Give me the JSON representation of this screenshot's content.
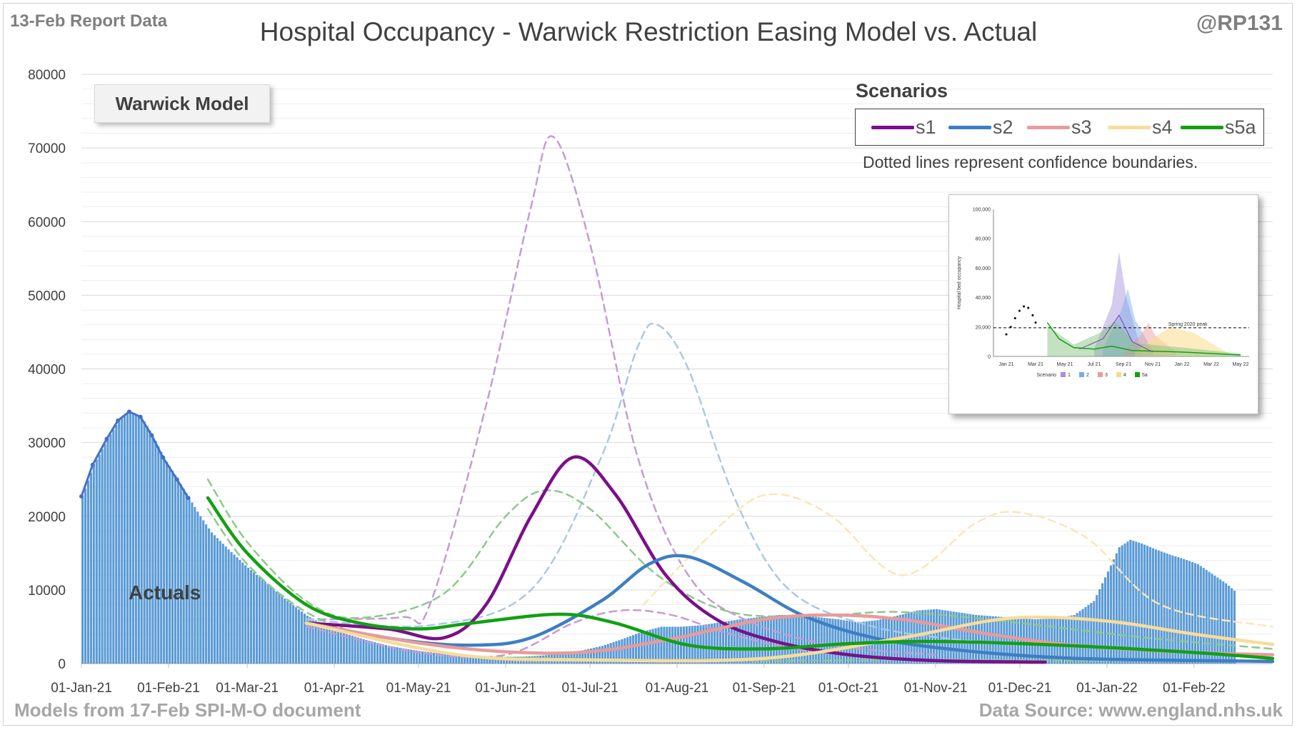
{
  "header": {
    "report_date": "13-Feb Report Data",
    "title": "Hospital Occupancy - Warwick Restriction Easing Model vs. Actual",
    "handle": "@RP131"
  },
  "footer": {
    "models_note": "Models from 17-Feb SPI-M-O document",
    "data_source": "Data Source: www.england.nhs.uk"
  },
  "model_badge": "Warwick Model",
  "actuals_label": "Actuals",
  "legend": {
    "title": "Scenarios",
    "items": [
      {
        "label": "s1",
        "color": "#7b0f8a"
      },
      {
        "label": "s2",
        "color": "#3d7ec4"
      },
      {
        "label": "s3",
        "color": "#e99a9a"
      },
      {
        "label": "s4",
        "color": "#f8dc9a"
      },
      {
        "label": "s5a",
        "color": "#12a012"
      }
    ],
    "note": "Dotted lines represent confidence boundaries."
  },
  "inset": {
    "ylabel": "Hospital bed occupancy",
    "yticks": [
      "0",
      "20,000",
      "40,000",
      "60,000",
      "80,000",
      "100,000"
    ],
    "xticks": [
      "Jan 21",
      "Mar 21",
      "May 21",
      "Jul 21",
      "Sep 21",
      "Nov 21",
      "Jan 22",
      "Mar 22",
      "May 22"
    ],
    "peak_label": "Spring 2020 peak",
    "legend_label": "Scenario",
    "legend_items": [
      "1",
      "2",
      "3",
      "4",
      "5a"
    ]
  },
  "chart_data": {
    "type": "bar+line",
    "title": "Hospital Occupancy - Warwick Restriction Easing Model vs. Actual",
    "ylim": [
      0,
      80000
    ],
    "yticks": [
      "0",
      "10000",
      "20000",
      "30000",
      "40000",
      "50000",
      "60000",
      "70000",
      "80000"
    ],
    "xlim": [
      "2021-01-01",
      "2022-03-01"
    ],
    "xticks": [
      "01-Jan-21",
      "01-Feb-21",
      "01-Mar-21",
      "01-Apr-21",
      "01-May-21",
      "01-Jun-21",
      "01-Jul-21",
      "01-Aug-21",
      "01-Sep-21",
      "01-Oct-21",
      "01-Nov-21",
      "01-Dec-21",
      "01-Jan-22",
      "01-Feb-22"
    ],
    "grid": true,
    "actuals": {
      "name": "Actuals",
      "color": "#5b9bd5",
      "points": [
        [
          "2021-01-01",
          22700
        ],
        [
          "2021-01-05",
          27000
        ],
        [
          "2021-01-10",
          30500
        ],
        [
          "2021-01-14",
          33000
        ],
        [
          "2021-01-18",
          34200
        ],
        [
          "2021-01-22",
          33500
        ],
        [
          "2021-01-26",
          31000
        ],
        [
          "2021-01-30",
          28000
        ],
        [
          "2021-02-04",
          25000
        ],
        [
          "2021-02-08",
          22500
        ],
        [
          "2021-02-12",
          20000
        ],
        [
          "2021-02-16",
          17800
        ],
        [
          "2021-02-22",
          15500
        ],
        [
          "2021-03-01",
          13000
        ],
        [
          "2021-03-08",
          10800
        ],
        [
          "2021-03-15",
          8500
        ],
        [
          "2021-03-22",
          6500
        ],
        [
          "2021-03-29",
          5000
        ],
        [
          "2021-04-05",
          4000
        ],
        [
          "2021-04-12",
          3200
        ],
        [
          "2021-04-19",
          2500
        ],
        [
          "2021-04-26",
          2000
        ],
        [
          "2021-05-03",
          1600
        ],
        [
          "2021-05-10",
          1300
        ],
        [
          "2021-05-17",
          1100
        ],
        [
          "2021-05-24",
          950
        ],
        [
          "2021-05-31",
          900
        ],
        [
          "2021-06-07",
          950
        ],
        [
          "2021-06-14",
          1100
        ],
        [
          "2021-06-21",
          1400
        ],
        [
          "2021-06-28",
          1800
        ],
        [
          "2021-07-05",
          2400
        ],
        [
          "2021-07-12",
          3300
        ],
        [
          "2021-07-19",
          4300
        ],
        [
          "2021-07-26",
          5000
        ],
        [
          "2021-08-02",
          5000
        ],
        [
          "2021-08-09",
          5200
        ],
        [
          "2021-08-16",
          5600
        ],
        [
          "2021-08-23",
          6000
        ],
        [
          "2021-08-30",
          6300
        ],
        [
          "2021-09-06",
          6600
        ],
        [
          "2021-09-13",
          6600
        ],
        [
          "2021-09-20",
          6300
        ],
        [
          "2021-09-27",
          6000
        ],
        [
          "2021-10-04",
          5600
        ],
        [
          "2021-10-11",
          5900
        ],
        [
          "2021-10-18",
          6500
        ],
        [
          "2021-10-25",
          7200
        ],
        [
          "2021-11-01",
          7400
        ],
        [
          "2021-11-08",
          7000
        ],
        [
          "2021-11-15",
          6600
        ],
        [
          "2021-11-22",
          6400
        ],
        [
          "2021-11-29",
          6200
        ],
        [
          "2021-12-06",
          6000
        ],
        [
          "2021-12-13",
          6100
        ],
        [
          "2021-12-20",
          6600
        ],
        [
          "2021-12-27",
          8500
        ],
        [
          "2022-01-01",
          12500
        ],
        [
          "2022-01-05",
          15800
        ],
        [
          "2022-01-09",
          16800
        ],
        [
          "2022-01-13",
          16300
        ],
        [
          "2022-01-18",
          15500
        ],
        [
          "2022-01-23",
          14800
        ],
        [
          "2022-01-28",
          14200
        ],
        [
          "2022-02-02",
          13500
        ],
        [
          "2022-02-07",
          12200
        ],
        [
          "2022-02-12",
          10900
        ],
        [
          "2022-02-15",
          9900
        ]
      ]
    },
    "series": [
      {
        "name": "s1",
        "color": "#7b0f8a",
        "style": "solid",
        "points": [
          [
            "2021-03-22",
            5500
          ],
          [
            "2021-04-20",
            4700
          ],
          [
            "2021-05-10",
            3500
          ],
          [
            "2021-05-25",
            8000
          ],
          [
            "2021-06-10",
            20000
          ],
          [
            "2021-06-25",
            28000
          ],
          [
            "2021-07-10",
            23000
          ],
          [
            "2021-07-28",
            12000
          ],
          [
            "2021-08-15",
            6000
          ],
          [
            "2021-09-05",
            3000
          ],
          [
            "2021-10-01",
            1200
          ],
          [
            "2021-11-01",
            400
          ],
          [
            "2021-12-10",
            200
          ]
        ]
      },
      {
        "name": "s1",
        "color": "#c79ad6",
        "style": "dashed",
        "points": [
          [
            "2021-03-22",
            6000
          ],
          [
            "2021-04-25",
            6300
          ],
          [
            "2021-05-05",
            8000
          ],
          [
            "2021-05-25",
            35000
          ],
          [
            "2021-06-10",
            62000
          ],
          [
            "2021-06-18",
            71500
          ],
          [
            "2021-07-01",
            57000
          ],
          [
            "2021-07-18",
            28000
          ],
          [
            "2021-08-05",
            12000
          ],
          [
            "2021-08-25",
            6000
          ],
          [
            "2021-09-25",
            2500
          ],
          [
            "2021-11-01",
            1200
          ]
        ]
      },
      {
        "name": "s1",
        "color": "#c79ad6",
        "style": "dashed",
        "points": [
          [
            "2021-03-22",
            5000
          ],
          [
            "2021-05-01",
            1500
          ],
          [
            "2021-06-01",
            1200
          ],
          [
            "2021-06-25",
            5500
          ],
          [
            "2021-07-12",
            7200
          ],
          [
            "2021-07-30",
            6600
          ],
          [
            "2021-08-20",
            4000
          ],
          [
            "2021-09-15",
            1800
          ],
          [
            "2021-10-20",
            700
          ]
        ]
      },
      {
        "name": "s2",
        "color": "#3d7ec4",
        "style": "solid",
        "points": [
          [
            "2021-03-22",
            5500
          ],
          [
            "2021-04-25",
            3200
          ],
          [
            "2021-05-20",
            2500
          ],
          [
            "2021-06-10",
            3500
          ],
          [
            "2021-07-05",
            8500
          ],
          [
            "2021-07-22",
            13500
          ],
          [
            "2021-08-05",
            14500
          ],
          [
            "2021-08-25",
            11000
          ],
          [
            "2021-09-15",
            6500
          ],
          [
            "2021-10-10",
            3500
          ],
          [
            "2021-11-10",
            1800
          ],
          [
            "2021-12-15",
            800
          ],
          [
            "2022-01-15",
            500
          ],
          [
            "2022-03-01",
            300
          ]
        ]
      },
      {
        "name": "s2",
        "color": "#a9c8e8",
        "style": "dashed",
        "points": [
          [
            "2021-03-22",
            6000
          ],
          [
            "2021-05-05",
            5200
          ],
          [
            "2021-06-10",
            10000
          ],
          [
            "2021-07-05",
            28000
          ],
          [
            "2021-07-18",
            43000
          ],
          [
            "2021-07-25",
            46000
          ],
          [
            "2021-08-05",
            40000
          ],
          [
            "2021-08-22",
            22000
          ],
          [
            "2021-09-10",
            10000
          ],
          [
            "2021-10-10",
            5000
          ],
          [
            "2021-11-15",
            3000
          ]
        ]
      },
      {
        "name": "s3",
        "color": "#e99a9a",
        "style": "solid",
        "points": [
          [
            "2021-03-22",
            5500
          ],
          [
            "2021-05-01",
            2800
          ],
          [
            "2021-06-01",
            1600
          ],
          [
            "2021-07-01",
            1600
          ],
          [
            "2021-08-01",
            3500
          ],
          [
            "2021-09-01",
            6000
          ],
          [
            "2021-09-25",
            6600
          ],
          [
            "2021-10-20",
            6000
          ],
          [
            "2021-11-20",
            4000
          ],
          [
            "2021-12-20",
            2500
          ],
          [
            "2022-02-01",
            1500
          ],
          [
            "2022-03-01",
            1200
          ]
        ]
      },
      {
        "name": "s4",
        "color": "#f8dc9a",
        "style": "solid",
        "points": [
          [
            "2021-03-22",
            5500
          ],
          [
            "2021-05-15",
            1200
          ],
          [
            "2021-07-01",
            500
          ],
          [
            "2021-09-01",
            700
          ],
          [
            "2021-10-20",
            3500
          ],
          [
            "2021-11-20",
            5800
          ],
          [
            "2021-12-10",
            6300
          ],
          [
            "2022-01-05",
            5600
          ],
          [
            "2022-02-01",
            4000
          ],
          [
            "2022-03-01",
            2600
          ]
        ]
      },
      {
        "name": "s4",
        "color": "#fae6b8",
        "style": "dashed",
        "points": [
          [
            "2021-07-20",
            8000
          ],
          [
            "2021-08-20",
            20000
          ],
          [
            "2021-09-05",
            23000
          ],
          [
            "2021-09-25",
            20000
          ],
          [
            "2021-10-20",
            12000
          ],
          [
            "2021-11-15",
            19000
          ],
          [
            "2021-12-01",
            20500
          ],
          [
            "2021-12-25",
            17000
          ],
          [
            "2022-01-20",
            8000
          ],
          [
            "2022-03-01",
            5000
          ]
        ]
      },
      {
        "name": "s5a",
        "color": "#12a012",
        "style": "solid",
        "points": [
          [
            "2021-02-15",
            22500
          ],
          [
            "2021-03-01",
            15000
          ],
          [
            "2021-03-22",
            8000
          ],
          [
            "2021-04-10",
            5500
          ],
          [
            "2021-05-01",
            4700
          ],
          [
            "2021-05-20",
            5500
          ],
          [
            "2021-06-20",
            6700
          ],
          [
            "2021-07-10",
            5500
          ],
          [
            "2021-08-05",
            2500
          ],
          [
            "2021-09-01",
            2000
          ],
          [
            "2021-10-01",
            2700
          ],
          [
            "2021-11-01",
            3000
          ],
          [
            "2021-12-15",
            2500
          ],
          [
            "2022-02-01",
            1500
          ],
          [
            "2022-03-01",
            700
          ]
        ]
      },
      {
        "name": "s5a",
        "color": "#8cc98c",
        "style": "dashed",
        "points": [
          [
            "2021-02-15",
            25000
          ],
          [
            "2021-03-01",
            16500
          ],
          [
            "2021-03-22",
            8500
          ],
          [
            "2021-04-10",
            6200
          ],
          [
            "2021-05-10",
            9500
          ],
          [
            "2021-06-01",
            20000
          ],
          [
            "2021-06-15",
            23500
          ],
          [
            "2021-07-01",
            21000
          ],
          [
            "2021-07-25",
            12000
          ],
          [
            "2021-08-20",
            7000
          ],
          [
            "2021-09-20",
            6500
          ],
          [
            "2021-10-20",
            7000
          ],
          [
            "2021-12-01",
            5500
          ],
          [
            "2022-01-15",
            3500
          ],
          [
            "2022-03-01",
            2000
          ]
        ]
      },
      {
        "name": "s5a",
        "color": "#8cc98c",
        "style": "dashed",
        "points": [
          [
            "2021-02-15",
            21000
          ],
          [
            "2021-03-01",
            13500
          ],
          [
            "2021-03-22",
            7000
          ],
          [
            "2021-04-15",
            3500
          ],
          [
            "2021-05-15",
            1200
          ],
          [
            "2021-06-20",
            700
          ],
          [
            "2021-08-01",
            400
          ],
          [
            "2021-09-15",
            400
          ],
          [
            "2021-11-01",
            500
          ],
          [
            "2022-01-01",
            400
          ],
          [
            "2022-03-01",
            300
          ]
        ]
      }
    ]
  }
}
